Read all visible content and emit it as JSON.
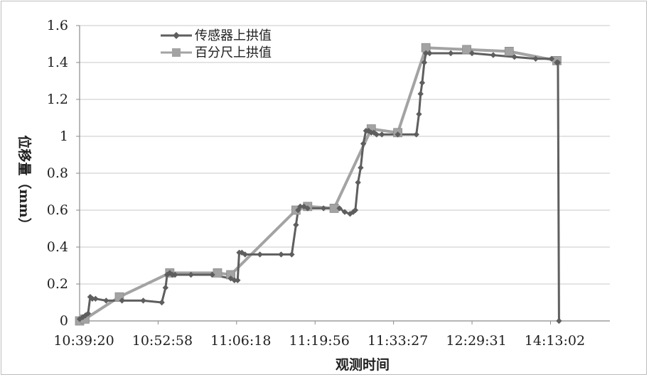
{
  "chart_data": {
    "type": "line",
    "title": "",
    "xlabel": "观测时间",
    "ylabel": "位移量（mm）",
    "ylim": [
      0,
      1.6
    ],
    "yticks": [
      0,
      0.2,
      0.4,
      0.6,
      0.8,
      1,
      1.2,
      1.4,
      1.6
    ],
    "ytick_labels": [
      "0",
      "0.2",
      "0.4",
      "0.6",
      "0.8",
      "1",
      "1.2",
      "1.4",
      "1.6"
    ],
    "xlim": [
      0,
      100
    ],
    "xticks": [
      0,
      14.8,
      29.6,
      44.4,
      59.2,
      74.0,
      88.8
    ],
    "xtick_labels": [
      "10:39:20",
      "10:52:58",
      "11:06:18",
      "11:19:56",
      "11:33:27",
      "12:29:31",
      "14:13:02"
    ],
    "grid": {
      "horizontal": true,
      "vertical": false
    },
    "legend": "top-left",
    "series": [
      {
        "name": "传感器上拱值",
        "color": "#5e5e5e",
        "marker": "diamond",
        "x": [
          0,
          0.6,
          1.1,
          1.6,
          2.0,
          2.4,
          3.0,
          5.0,
          8.0,
          12.0,
          15.5,
          16.2,
          16.5,
          17.0,
          17.5,
          18.0,
          21.0,
          25.0,
          28.5,
          29.2,
          29.8,
          30.1,
          30.6,
          31.2,
          34.0,
          38.0,
          40.0,
          40.8,
          41.2,
          41.6,
          42.3,
          43.0,
          46.0,
          49.0,
          50.0,
          51.0,
          51.6,
          52.0,
          52.5,
          53.0,
          53.5,
          54.0,
          54.5,
          55.0,
          55.5,
          56.0,
          57.0,
          60.0,
          63.5,
          64.0,
          64.3,
          64.6,
          65.0,
          65.3,
          66.0,
          70.0,
          74.0,
          78.0,
          82.0,
          86.0,
          89.0,
          90.0,
          90.2,
          90.4
        ],
        "y": [
          0.01,
          0.02,
          0.03,
          0.04,
          0.13,
          0.12,
          0.12,
          0.11,
          0.11,
          0.11,
          0.1,
          0.18,
          0.25,
          0.26,
          0.25,
          0.25,
          0.25,
          0.25,
          0.23,
          0.22,
          0.22,
          0.37,
          0.37,
          0.36,
          0.36,
          0.36,
          0.36,
          0.52,
          0.6,
          0.62,
          0.62,
          0.61,
          0.61,
          0.61,
          0.59,
          0.58,
          0.59,
          0.6,
          0.75,
          0.83,
          0.96,
          1.03,
          1.03,
          1.02,
          1.02,
          1.01,
          1.01,
          1.01,
          1.01,
          1.12,
          1.23,
          1.29,
          1.4,
          1.45,
          1.45,
          1.45,
          1.45,
          1.44,
          1.43,
          1.42,
          1.42,
          1.4,
          1.4,
          0.0
        ]
      },
      {
        "name": "百分尺上拱值",
        "color": "#a3a3a3",
        "marker": "square",
        "x": [
          0,
          1.0,
          7.5,
          17.0,
          26.0,
          28.5,
          40.8,
          43.0,
          48.0,
          55.0,
          60.0,
          65.3,
          73.0,
          81.0,
          90.0
        ],
        "y": [
          0.0,
          0.01,
          0.13,
          0.26,
          0.26,
          0.25,
          0.6,
          0.62,
          0.61,
          1.04,
          1.02,
          1.48,
          1.47,
          1.46,
          1.41
        ]
      }
    ]
  }
}
